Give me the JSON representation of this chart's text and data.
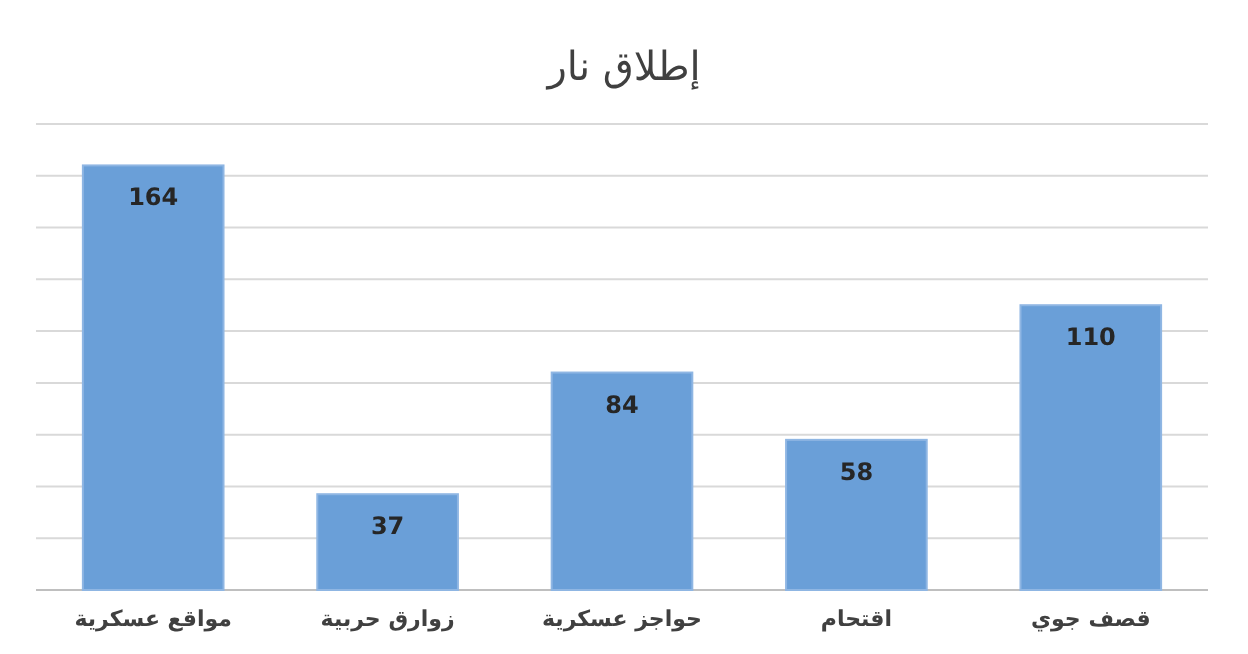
{
  "chart_data": {
    "type": "bar",
    "title": "إطلاق نار",
    "categories": [
      "مواقع عسكرية",
      "زوارق حربية",
      "حواجز عسكرية",
      "اقتحام",
      "قصف جوي"
    ],
    "values": [
      164,
      37,
      84,
      58,
      110
    ],
    "color": "#6a9fd8",
    "data_labels": true,
    "ylim": [
      0,
      180
    ],
    "yticks": [
      {
        "value": 0,
        "label": null
      },
      {
        "value": 20,
        "label": null
      },
      {
        "value": 40,
        "label": null
      },
      {
        "value": 60,
        "label": null
      },
      {
        "value": 80,
        "label": null
      },
      {
        "value": 100,
        "label": null
      },
      {
        "value": 120,
        "label": null
      },
      {
        "value": 140,
        "label": null
      },
      {
        "value": 160,
        "label": null
      },
      {
        "value": 180,
        "label": null
      }
    ],
    "grid": "y",
    "tick_labels": "x"
  }
}
